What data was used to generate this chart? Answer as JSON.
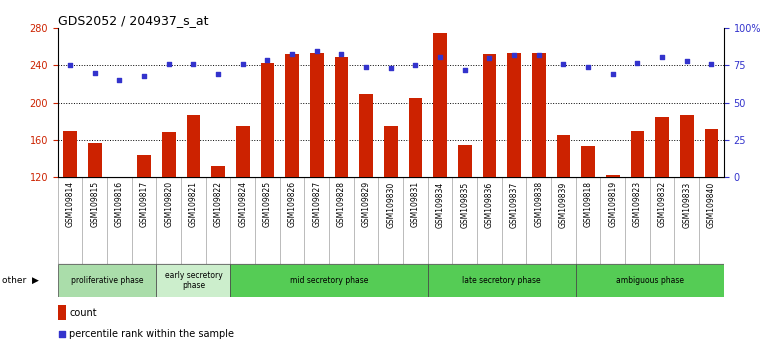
{
  "title": "GDS2052 / 204937_s_at",
  "samples": [
    "GSM109814",
    "GSM109815",
    "GSM109816",
    "GSM109817",
    "GSM109820",
    "GSM109821",
    "GSM109822",
    "GSM109824",
    "GSM109825",
    "GSM109826",
    "GSM109827",
    "GSM109828",
    "GSM109829",
    "GSM109830",
    "GSM109831",
    "GSM109834",
    "GSM109835",
    "GSM109836",
    "GSM109837",
    "GSM109838",
    "GSM109839",
    "GSM109818",
    "GSM109819",
    "GSM109823",
    "GSM109832",
    "GSM109833",
    "GSM109840"
  ],
  "counts": [
    170,
    157,
    119,
    144,
    168,
    187,
    132,
    175,
    243,
    252,
    253,
    249,
    209,
    175,
    205,
    275,
    154,
    252,
    253,
    253,
    165,
    153,
    122,
    169,
    185,
    187,
    172
  ],
  "percentiles": [
    75,
    70,
    65,
    68,
    76,
    76,
    69,
    76,
    79,
    83,
    85,
    83,
    74,
    73,
    75,
    81,
    72,
    80,
    82,
    82,
    76,
    74,
    69,
    77,
    81,
    78,
    76
  ],
  "y_min": 120,
  "y_max": 280,
  "y_ticks": [
    120,
    160,
    200,
    240,
    280
  ],
  "y2_ticks": [
    0,
    25,
    50,
    75,
    100
  ],
  "bar_color": "#cc2200",
  "dot_color": "#3333cc",
  "phases": [
    {
      "label": "proliferative phase",
      "start": 0,
      "end": 4,
      "color": "#aaddaa"
    },
    {
      "label": "early secretory\nphase",
      "start": 4,
      "end": 7,
      "color": "#cceecc"
    },
    {
      "label": "mid secretory phase",
      "start": 7,
      "end": 15,
      "color": "#55cc55"
    },
    {
      "label": "late secretory phase",
      "start": 15,
      "end": 21,
      "color": "#55cc55"
    },
    {
      "label": "ambiguous phase",
      "start": 21,
      "end": 27,
      "color": "#55cc55"
    }
  ],
  "other_label": "other",
  "legend_count_label": "count",
  "legend_pct_label": "percentile rank within the sample",
  "background_color": "#ffffff",
  "grid_color": "#000000",
  "xlabels_bg_color": "#cccccc",
  "xlabels_sep_color": "#888888"
}
